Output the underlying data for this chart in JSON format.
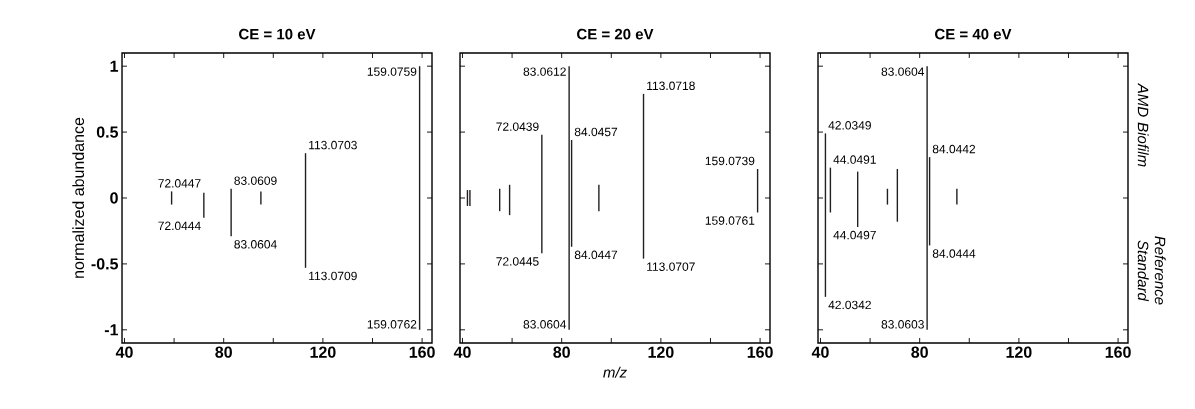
{
  "chart_data": [
    {
      "type": "bar",
      "title": "CE = 10 eV",
      "ylabel": "normalized abundance",
      "xlim": [
        39,
        164
      ],
      "ylim": [
        -1.1,
        1.1
      ],
      "xticks": [
        40,
        {
          "value": 60,
          "label": null
        },
        80,
        {
          "value": 100,
          "label": null
        },
        120,
        {
          "value": 140,
          "label": null
        },
        160
      ],
      "yticks": [
        -1,
        -0.5,
        0,
        0.5,
        1
      ],
      "series": [
        {
          "color": "#231f20",
          "x": [
            59,
            72,
            83,
            95,
            113,
            159
          ],
          "values": [
            0.05,
            0.04,
            0.07,
            0.05,
            0.34,
            1
          ]
        },
        {
          "color": "#231f20",
          "x": [
            59,
            72,
            83,
            95,
            113,
            159
          ],
          "values": [
            -0.05,
            -0.15,
            -0.29,
            -0.05,
            -0.53,
            -1
          ]
        }
      ],
      "annotations": [
        {
          "text": "72.0447",
          "x": 72,
          "y": 0.04
        },
        {
          "text": "83.0609",
          "x": 83,
          "y": 0.07
        },
        {
          "text": "113.0703",
          "x": 113,
          "y": 0.34
        },
        {
          "text": "159.0759",
          "x": 159,
          "y": 1
        },
        {
          "text": "72.0444",
          "x": 72,
          "y": -0.15
        },
        {
          "text": "83.0604",
          "x": 83,
          "y": -0.29
        },
        {
          "text": "113.0709",
          "x": 113,
          "y": -0.53
        },
        {
          "text": "159.0762",
          "x": 159,
          "y": -1
        }
      ]
    },
    {
      "type": "bar",
      "title": "CE = 20 eV",
      "xlabel": "m/z",
      "xlim": [
        39,
        164
      ],
      "ylim": [
        -1.1,
        1.1
      ],
      "tick_labels": "x",
      "xticks": [
        40,
        {
          "value": 60,
          "label": null
        },
        80,
        {
          "value": 100,
          "label": null
        },
        120,
        {
          "value": 140,
          "label": null
        },
        160
      ],
      "yticks": [
        -1,
        -0.5,
        0,
        0.5,
        1
      ],
      "series": [
        {
          "color": "#231f20",
          "x": [
            42,
            43,
            55,
            59,
            72,
            83,
            84,
            95,
            113,
            159
          ],
          "values": [
            0.06,
            0.06,
            0.07,
            0.1,
            0.48,
            1,
            0.44,
            0.1,
            0.79,
            0.22
          ]
        },
        {
          "color": "#231f20",
          "x": [
            42,
            43,
            55,
            59,
            72,
            83,
            84,
            95,
            113,
            159
          ],
          "values": [
            -0.06,
            -0.06,
            -0.1,
            -0.13,
            -0.42,
            -1,
            -0.37,
            -0.1,
            -0.46,
            -0.11
          ]
        }
      ],
      "annotations": [
        {
          "text": "72.0439",
          "x": 72,
          "y": 0.48
        },
        {
          "text": "83.0612",
          "x": 83,
          "y": 1
        },
        {
          "text": "84.0457",
          "x": 84,
          "y": 0.44
        },
        {
          "text": "113.0718",
          "x": 113,
          "y": 0.79
        },
        {
          "text": "159.0739",
          "x": 159,
          "y": 0.22
        },
        {
          "text": "72.0445",
          "x": 72,
          "y": -0.42
        },
        {
          "text": "83.0604",
          "x": 83,
          "y": -1
        },
        {
          "text": "84.0447",
          "x": 84,
          "y": -0.37
        },
        {
          "text": "113.0707",
          "x": 113,
          "y": -0.46
        },
        {
          "text": "159.0761",
          "x": 159,
          "y": -0.11
        }
      ]
    },
    {
      "type": "bar",
      "title": "CE = 40 eV",
      "xlim": [
        39,
        164
      ],
      "ylim": [
        -1.1,
        1.1
      ],
      "tick_labels": "x",
      "xticks": [
        40,
        {
          "value": 60,
          "label": null
        },
        80,
        {
          "value": 100,
          "label": null
        },
        120,
        {
          "value": 140,
          "label": null
        },
        160
      ],
      "yticks": [
        -1,
        -0.5,
        0,
        0.5,
        1
      ],
      "series": [
        {
          "name": "AMD Biofilm",
          "color": "#231f20",
          "x": [
            42,
            44,
            55,
            67,
            71,
            83,
            84,
            95
          ],
          "values": [
            0.49,
            0.23,
            0.2,
            0.07,
            0.22,
            1,
            0.31,
            0.07
          ]
        },
        {
          "name": "Reference Standard",
          "color": "#231f20",
          "x": [
            42,
            44,
            55,
            67,
            71,
            83,
            84,
            95
          ],
          "values": [
            -0.75,
            -0.11,
            -0.22,
            -0.05,
            -0.18,
            -1,
            -0.36,
            -0.05
          ]
        }
      ],
      "annotations": [
        {
          "text": "42.0349",
          "x": 42,
          "y": 0.49
        },
        {
          "text": "44.0491",
          "x": 44,
          "y": 0.23
        },
        {
          "text": "83.0604",
          "x": 83,
          "y": 1
        },
        {
          "text": "84.0442",
          "x": 84,
          "y": 0.31
        },
        {
          "text": "42.0342",
          "x": 42,
          "y": -0.75
        },
        {
          "text": "44.0497",
          "x": 44,
          "y": -0.11
        },
        {
          "text": "83.0603",
          "x": 83,
          "y": -1
        },
        {
          "text": "84.0444",
          "x": 84,
          "y": -0.36
        }
      ]
    }
  ]
}
